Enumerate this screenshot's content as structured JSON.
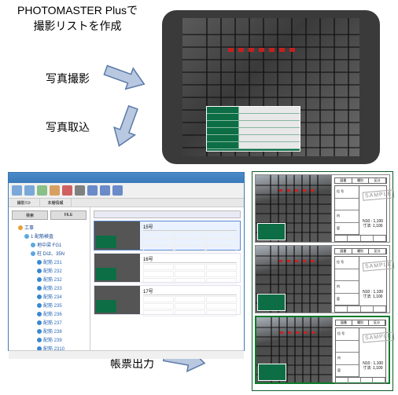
{
  "header": {
    "line1": "PHOTOMASTER Plusで",
    "line2": "撮影リストを作成"
  },
  "labels": {
    "shoot": "写真撮影",
    "import": "写真取込",
    "export": "帳票出力"
  },
  "arrows": {
    "fill": "#b8c8e0",
    "stroke": "#5a7aa8",
    "width": 56,
    "height": 36
  },
  "tablet": {
    "body_color": "#3a3a3a",
    "panel_color": "#0d6e45",
    "red_mark_color": "#c82020",
    "rebar_v_positions": [
      30,
      48,
      66,
      84,
      102,
      120,
      138,
      156,
      174,
      192,
      210
    ],
    "rebar_h_positions": [
      20,
      36,
      52,
      68,
      84,
      100,
      116,
      132,
      148,
      164
    ],
    "red_mark_count": 7
  },
  "app": {
    "title_bar_color": "#3a7ab8",
    "toolbar_icons": [
      "#7aa8d8",
      "#7aa8d8",
      "#88c088",
      "#d8a060",
      "#d06060",
      "#808080",
      "#6a8ac8",
      "#6a8ac8",
      "#6a8ac8"
    ],
    "tabs": [
      "撮影ﾘｽﾄ",
      "本棚情報"
    ],
    "tree_buttons": [
      "検索",
      "FILE"
    ],
    "tree": [
      {
        "lvl": 1,
        "txt": "工事",
        "color": "#e8a030"
      },
      {
        "lvl": 2,
        "txt": "1 配筋検査",
        "color": "#5aa8e0"
      },
      {
        "lvl": 3,
        "txt": "地中梁 FG1",
        "color": "#5aa8e0"
      },
      {
        "lvl": 3,
        "txt": "柱 Dは、35N",
        "color": "#5aa8e0"
      },
      {
        "lvl": 4,
        "txt": "配筋 231",
        "color": "#3a88d0"
      },
      {
        "lvl": 4,
        "txt": "配筋 232",
        "color": "#3a88d0"
      },
      {
        "lvl": 4,
        "txt": "配筋 232",
        "color": "#3a88d0"
      },
      {
        "lvl": 4,
        "txt": "配筋 233",
        "color": "#3a88d0"
      },
      {
        "lvl": 4,
        "txt": "配筋 234",
        "color": "#3a88d0"
      },
      {
        "lvl": 4,
        "txt": "配筋 235",
        "color": "#3a88d0"
      },
      {
        "lvl": 4,
        "txt": "配筋 236",
        "color": "#3a88d0"
      },
      {
        "lvl": 4,
        "txt": "配筋 237",
        "color": "#3a88d0"
      },
      {
        "lvl": 4,
        "txt": "配筋 238",
        "color": "#3a88d0"
      },
      {
        "lvl": 4,
        "txt": "配筋 239",
        "color": "#3a88d0"
      },
      {
        "lvl": 4,
        "txt": "配筋 2310",
        "color": "#3a88d0"
      }
    ],
    "rows": [
      {
        "title": "15号",
        "sel": true
      },
      {
        "title": "16号",
        "sel": false
      },
      {
        "title": "17号",
        "sel": false
      }
    ]
  },
  "output": {
    "border_color": "#0a5a2a",
    "rows": [
      {
        "highlight": false,
        "header": [
          "図番",
          "種別",
          "区分"
        ],
        "left": [
          "位 号",
          "",
          "内",
          "容"
        ],
        "stamp": "SAMPLE",
        "right_text": "N10 : 1,100\n寸法: 1,100"
      },
      {
        "highlight": false,
        "header": [
          "図番",
          "種別",
          "区分"
        ],
        "left": [
          "位 号",
          "",
          "内",
          "容"
        ],
        "stamp": "SAMPLE",
        "right_text": "N10 : 1,100\n寸法: 1,100"
      },
      {
        "highlight": true,
        "header": [
          "図番",
          "種別",
          "区分"
        ],
        "left": [
          "位 号",
          "",
          "内",
          "容"
        ],
        "stamp": "SAMPLE",
        "right_text": "N10 : 1,100\n寸法: 1,100"
      }
    ],
    "photo": {
      "rebar_v": [
        18,
        28,
        38,
        48,
        58,
        68,
        78
      ],
      "rebar_h": [
        12,
        24,
        36,
        48,
        60,
        72
      ],
      "red_marks": [
        [
          30,
          18
        ],
        [
          40,
          18
        ],
        [
          50,
          18
        ],
        [
          60,
          18
        ],
        [
          70,
          18
        ]
      ]
    }
  }
}
